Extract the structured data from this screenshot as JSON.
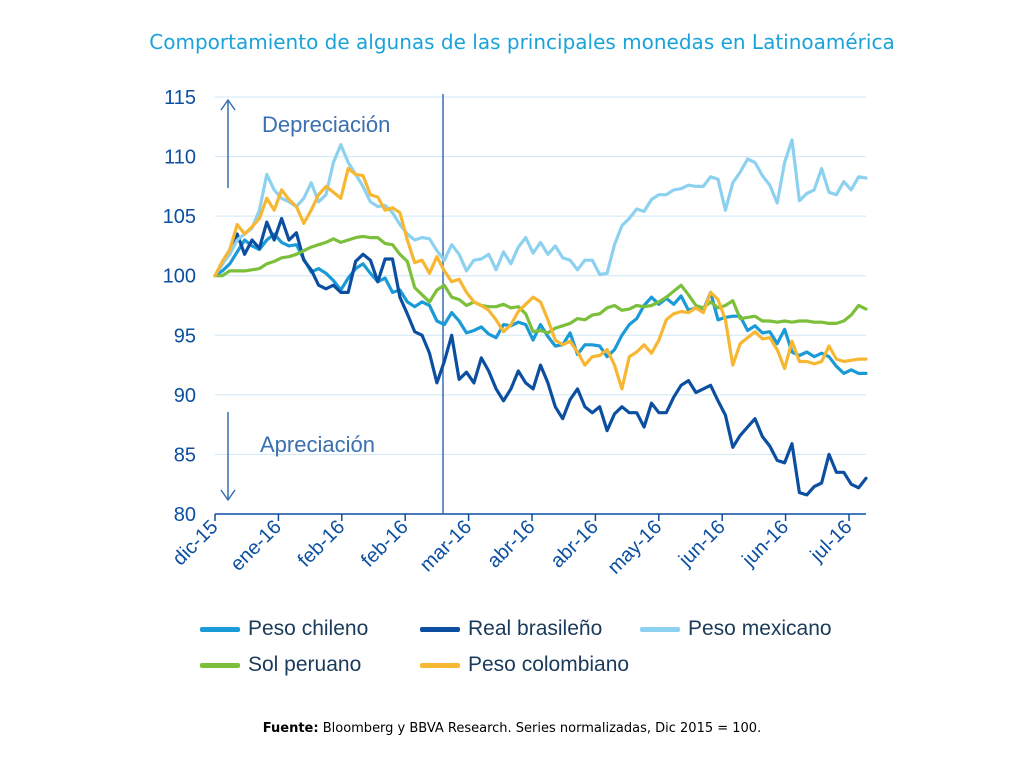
{
  "chart_data": {
    "type": "line",
    "title": "Comportamiento de algunas de las principales monedas en Latinoamérica",
    "ylim": [
      80,
      115
    ],
    "yticks": [
      80,
      85,
      90,
      95,
      100,
      105,
      110,
      115
    ],
    "xtick_labels": [
      "dic-15",
      "ene-16",
      "feb-16",
      "feb-16",
      "mar-16",
      "abr-16",
      "abr-16",
      "may-16",
      "jun-16",
      "jun-16",
      "jul-16"
    ],
    "annotations": {
      "up": "Depreciación",
      "down": "Apreciación"
    },
    "grid": true,
    "legend_position": "bottom",
    "series": [
      {
        "name": "Peso chileno",
        "color": "#1a9ad6",
        "values": [
          100,
          100.4,
          101,
          102,
          103,
          102.5,
          102.2,
          103,
          103.5,
          102.8,
          102.5,
          102.6,
          101.4,
          100.3,
          100.6,
          100.2,
          99.6,
          98.8,
          99.8,
          100.6,
          101,
          100.2,
          99.5,
          99.8,
          98.6,
          98.8,
          97.8,
          97.4,
          97.8,
          97.5,
          96.2,
          95.9,
          96.9,
          96.2,
          95.2,
          95.4,
          95.7,
          95.1,
          94.8,
          95.9,
          95.8,
          96.1,
          95.9,
          94.6,
          95.9,
          94.9,
          94.1,
          94.2,
          95.2,
          93.4,
          94.2,
          94.2,
          94.1,
          93.2,
          93.8,
          95,
          95.9,
          96.4,
          97.5,
          98.2,
          97.6,
          98.1,
          97.6,
          98.3,
          97.1,
          97.3,
          97.1,
          98.6,
          96.3,
          96.5,
          96.6,
          96.6,
          95.4,
          95.8,
          95.2,
          95.3,
          94.3,
          95.5,
          93.6,
          93.3,
          93.6,
          93.2,
          93.5,
          93.2,
          92.4,
          91.8,
          92.1,
          91.8,
          91.8
        ]
      },
      {
        "name": "Real brasileño",
        "color": "#0c4fa0",
        "values": [
          100,
          101,
          102,
          103.5,
          101.8,
          103,
          102.3,
          104.5,
          103,
          104.8,
          103,
          103.6,
          101.3,
          100.5,
          99.2,
          98.9,
          99.2,
          98.6,
          98.6,
          101.2,
          101.8,
          101.3,
          99.5,
          101.4,
          101.4,
          98.2,
          96.8,
          95.3,
          95,
          93.5,
          91,
          92.8,
          95,
          91.3,
          91.9,
          91,
          93.1,
          92,
          90.5,
          89.5,
          90.5,
          92,
          91,
          90.5,
          92.5,
          91,
          89,
          88,
          89.6,
          90.5,
          89,
          88.5,
          89,
          87,
          88.4,
          89,
          88.5,
          88.5,
          87.3,
          89.3,
          88.5,
          88.5,
          89.8,
          90.8,
          91.2,
          90.2,
          90.5,
          90.8,
          89.5,
          88.3,
          85.6,
          86.6,
          87.3,
          88,
          86.5,
          85.7,
          84.5,
          84.3,
          85.9,
          81.8,
          81.6,
          82.3,
          82.6,
          85,
          83.5,
          83.5,
          82.5,
          82.2,
          83
        ]
      },
      {
        "name": "Peso mexicano",
        "color": "#8dd1f0",
        "values": [
          100,
          101,
          101.8,
          103,
          103.5,
          104,
          105.5,
          108.5,
          107.2,
          106.5,
          106.2,
          105.8,
          106.5,
          107.8,
          106.2,
          106.8,
          109.5,
          111,
          109.5,
          108.5,
          107.5,
          106.2,
          105.8,
          105.9,
          105.3,
          104.3,
          103.5,
          103,
          103.2,
          103.1,
          102.1,
          101.3,
          102.6,
          101.8,
          100.4,
          101.3,
          101.4,
          101.8,
          100.5,
          102,
          101,
          102.4,
          103.2,
          101.9,
          102.8,
          101.8,
          102.5,
          101.5,
          101.3,
          100.5,
          101.3,
          101.3,
          100.1,
          100.2,
          102.6,
          104.2,
          104.8,
          105.6,
          105.4,
          106.4,
          106.8,
          106.8,
          107.2,
          107.3,
          107.6,
          107.5,
          107.5,
          108.3,
          108.1,
          105.5,
          107.8,
          108.7,
          109.8,
          109.5,
          108.4,
          107.6,
          106.1,
          109.5,
          111.4,
          106.3,
          106.9,
          107.2,
          109,
          107,
          106.8,
          107.9,
          107.2,
          108.3,
          108.2
        ]
      },
      {
        "name": "Sol peruano",
        "color": "#7bbf3a",
        "values": [
          100,
          100,
          100.4,
          100.4,
          100.4,
          100.5,
          100.6,
          101,
          101.2,
          101.5,
          101.6,
          101.8,
          102.1,
          102.4,
          102.6,
          102.8,
          103.1,
          102.8,
          103,
          103.2,
          103.3,
          103.2,
          103.2,
          102.7,
          102.6,
          101.8,
          101.2,
          99,
          98.4,
          97.8,
          98.8,
          99.2,
          98.2,
          98,
          97.5,
          97.8,
          97.5,
          97.4,
          97.4,
          97.6,
          97.3,
          97.4,
          96.8,
          95.3,
          95.4,
          95.2,
          95.6,
          95.8,
          96,
          96.4,
          96.3,
          96.7,
          96.8,
          97.3,
          97.5,
          97.1,
          97.2,
          97.5,
          97.4,
          97.5,
          97.8,
          98.2,
          98.7,
          99.2,
          98.4,
          97.5,
          97.3,
          97.8,
          97.3,
          97.5,
          97.9,
          96.4,
          96.5,
          96.6,
          96.2,
          96.2,
          96.1,
          96.2,
          96.1,
          96.2,
          96.2,
          96.1,
          96.1,
          96,
          96,
          96.2,
          96.7,
          97.5,
          97.2
        ]
      },
      {
        "name": "Peso colombiano",
        "color": "#f7b733",
        "values": [
          100,
          101.2,
          102.2,
          104.3,
          103.5,
          104.1,
          104.8,
          106.5,
          105.5,
          107.2,
          106.4,
          105.8,
          104.4,
          105.5,
          106.8,
          107.5,
          107,
          106.5,
          109,
          108.5,
          108.4,
          106.8,
          106.6,
          105.5,
          105.7,
          105.3,
          103,
          101.1,
          101.3,
          100.2,
          101.6,
          100.4,
          99.5,
          99.7,
          98.6,
          97.8,
          97.5,
          97.1,
          96.3,
          95.3,
          95.9,
          97,
          97.6,
          98.2,
          97.8,
          96.3,
          94.6,
          94.2,
          94.5,
          93.6,
          92.5,
          93.2,
          93.3,
          93.8,
          92.5,
          90.5,
          93.2,
          93.6,
          94.2,
          93.5,
          94.6,
          96.3,
          96.8,
          97,
          96.9,
          97.3,
          96.9,
          98.6,
          98,
          96.3,
          92.5,
          94.3,
          94.8,
          95.3,
          94.7,
          94.8,
          93.8,
          92.2,
          94.5,
          92.8,
          92.8,
          92.6,
          92.8,
          94.1,
          93,
          92.8,
          92.9,
          93,
          93
        ]
      }
    ]
  },
  "legend": {
    "items": [
      {
        "label": "Peso chileno",
        "color": "#1a9ad6"
      },
      {
        "label": "Real brasileño",
        "color": "#0c4fa0"
      },
      {
        "label": "Peso mexicano",
        "color": "#8dd1f0"
      },
      {
        "label": "Sol peruano",
        "color": "#7bbf3a"
      },
      {
        "label": "Peso colombiano",
        "color": "#f7b733"
      }
    ]
  },
  "source": {
    "prefix": "Fuente:",
    "text": " Bloomberg y BBVA Research. Series normalizadas, Dic 2015 = 100."
  }
}
